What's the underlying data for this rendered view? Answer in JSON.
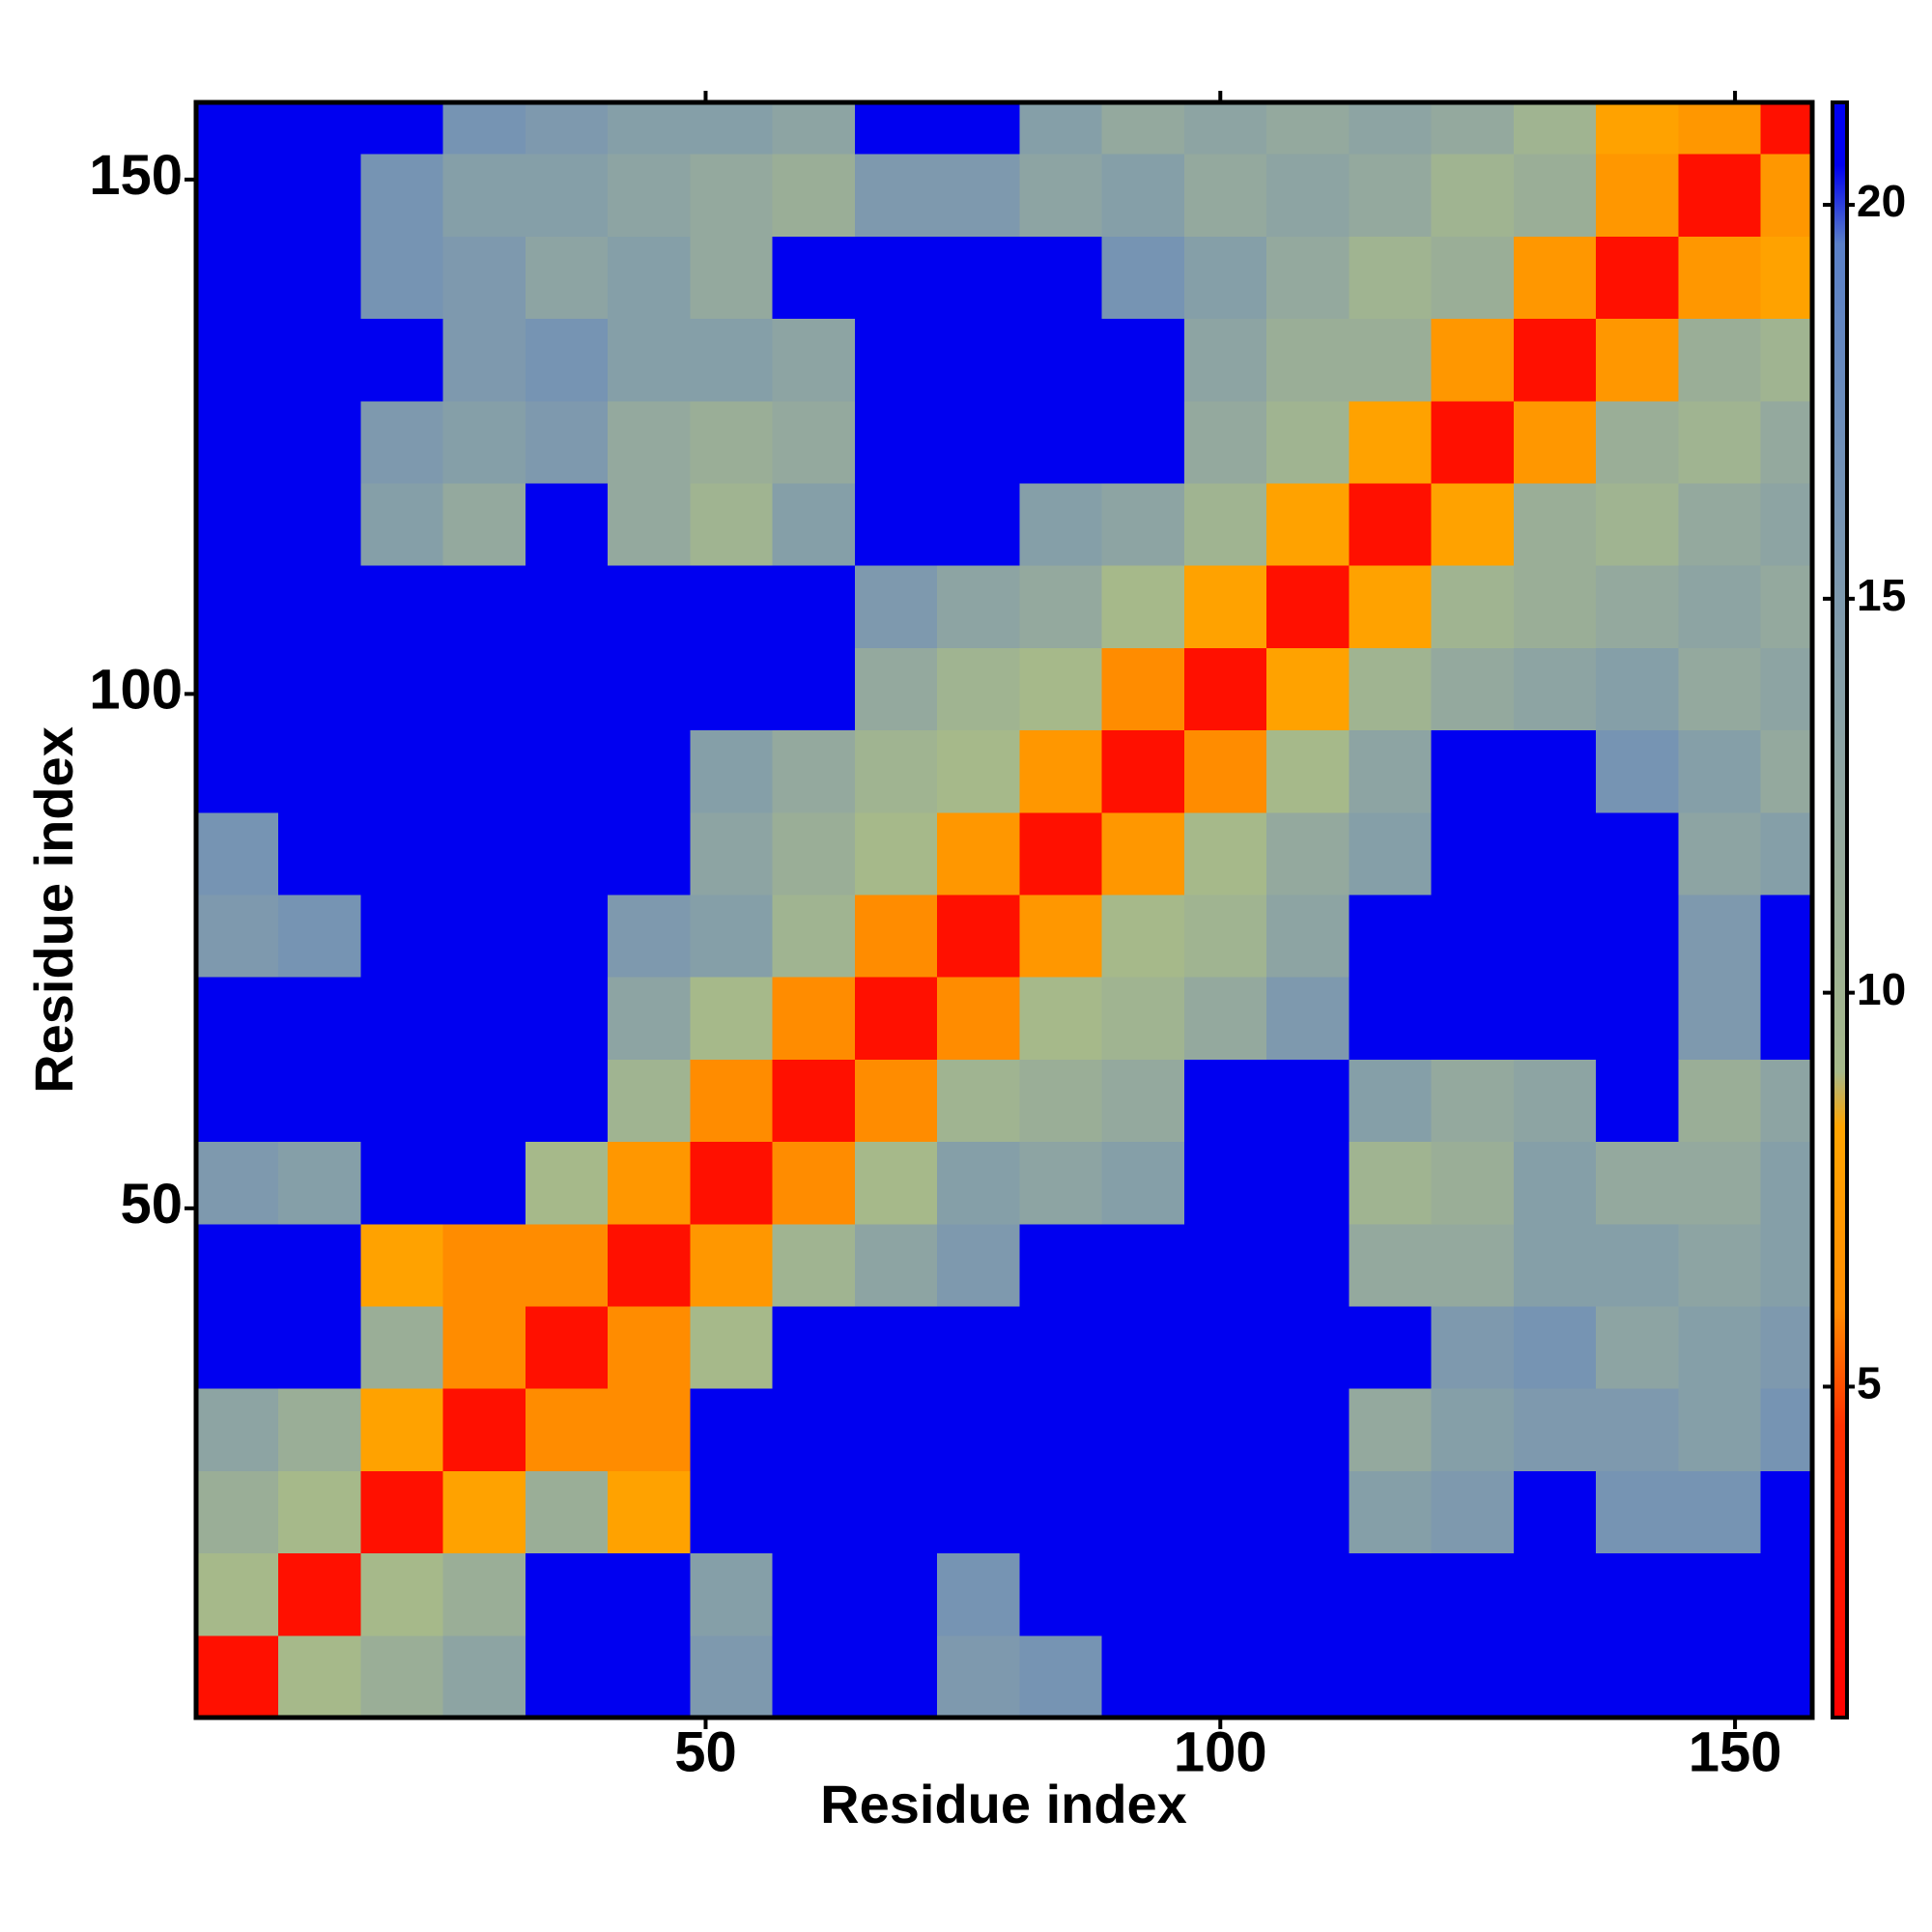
{
  "chart_data": {
    "type": "heatmap",
    "xlabel": "Residue index",
    "ylabel": "Residue index",
    "x": [
      4.5,
      12.5,
      20.5,
      28.5,
      36.5,
      44.5,
      52.5,
      60.5,
      68.5,
      76.5,
      84.5,
      92.5,
      100.5,
      108.5,
      116.5,
      124.5,
      132.5,
      140.5,
      148.5,
      156.5
    ],
    "y": [
      4.5,
      12.5,
      20.5,
      28.5,
      36.5,
      44.5,
      52.5,
      60.5,
      68.5,
      76.5,
      84.5,
      92.5,
      100.5,
      108.5,
      116.5,
      124.5,
      132.5,
      140.5,
      148.5,
      156.5
    ],
    "cell_size": 8,
    "values": [
      [
        2,
        9,
        11,
        13,
        21,
        21,
        15,
        21,
        21,
        15,
        16,
        21,
        21,
        21,
        21,
        21,
        21,
        21,
        21,
        21
      ],
      [
        9,
        2,
        9,
        11,
        21,
        21,
        14,
        21,
        21,
        16,
        21,
        21,
        21,
        21,
        21,
        21,
        21,
        21,
        21,
        21
      ],
      [
        11,
        9,
        2,
        8,
        11,
        8,
        21,
        21,
        21,
        21,
        21,
        21,
        21,
        21,
        14,
        15,
        21,
        16,
        16,
        21
      ],
      [
        13,
        11,
        8,
        2,
        6,
        6,
        21,
        21,
        21,
        21,
        21,
        21,
        21,
        21,
        12,
        14,
        15,
        15,
        14,
        16
      ],
      [
        21,
        21,
        11,
        6,
        2,
        6,
        9,
        21,
        21,
        21,
        21,
        21,
        21,
        21,
        21,
        15,
        16,
        13,
        14,
        15
      ],
      [
        21,
        21,
        8,
        6,
        6,
        2,
        7,
        10,
        13,
        15,
        21,
        21,
        21,
        21,
        12,
        12,
        14,
        14,
        13,
        14
      ],
      [
        15,
        14,
        21,
        21,
        9,
        7,
        2,
        6,
        9,
        14,
        13,
        14,
        21,
        21,
        10,
        11,
        14,
        12,
        12,
        14
      ],
      [
        21,
        21,
        21,
        21,
        21,
        10,
        6,
        2,
        6,
        10,
        11,
        12,
        21,
        21,
        14,
        12,
        13,
        21,
        11,
        13
      ],
      [
        21,
        21,
        21,
        21,
        21,
        13,
        9,
        6,
        2,
        6,
        9,
        10,
        12,
        15,
        21,
        21,
        21,
        21,
        15,
        21
      ],
      [
        15,
        16,
        21,
        21,
        21,
        15,
        14,
        10,
        6,
        2,
        7,
        9,
        10,
        13,
        21,
        21,
        21,
        21,
        15,
        21
      ],
      [
        16,
        21,
        21,
        21,
        21,
        21,
        13,
        11,
        9,
        7,
        2,
        7,
        9,
        12,
        14,
        21,
        21,
        21,
        13,
        14
      ],
      [
        21,
        21,
        21,
        21,
        21,
        21,
        14,
        12,
        10,
        9,
        7,
        2,
        6,
        9,
        13,
        21,
        21,
        16,
        14,
        12
      ],
      [
        21,
        21,
        21,
        21,
        21,
        21,
        21,
        21,
        12,
        10,
        9,
        6,
        2,
        8,
        10,
        12,
        13,
        14,
        12,
        13
      ],
      [
        21,
        21,
        21,
        21,
        21,
        21,
        21,
        21,
        15,
        13,
        12,
        9,
        8,
        2,
        8,
        10,
        11,
        12,
        13,
        12
      ],
      [
        21,
        21,
        14,
        12,
        21,
        12,
        10,
        14,
        21,
        21,
        14,
        13,
        10,
        8,
        2,
        8,
        11,
        10,
        12,
        13
      ],
      [
        21,
        21,
        15,
        14,
        15,
        12,
        11,
        12,
        21,
        21,
        21,
        21,
        12,
        10,
        8,
        2,
        7,
        11,
        10,
        12
      ],
      [
        21,
        21,
        21,
        15,
        16,
        14,
        14,
        13,
        21,
        21,
        21,
        21,
        13,
        11,
        11,
        7,
        2,
        7,
        11,
        10
      ],
      [
        21,
        21,
        16,
        15,
        13,
        14,
        12,
        21,
        21,
        21,
        21,
        16,
        14,
        12,
        10,
        11,
        7,
        2,
        7,
        8
      ],
      [
        21,
        21,
        16,
        14,
        14,
        13,
        12,
        11,
        15,
        15,
        13,
        14,
        12,
        13,
        12,
        10,
        11,
        7,
        2,
        7
      ],
      [
        21,
        21,
        21,
        16,
        15,
        14,
        14,
        13,
        21,
        21,
        14,
        12,
        13,
        12,
        13,
        12,
        10,
        8,
        7,
        2
      ]
    ],
    "xlim": [
      0.5,
      157.5
    ],
    "ylim": [
      0.5,
      157.5
    ],
    "xticks": [
      50,
      100,
      150
    ],
    "yticks": [
      50,
      100,
      150
    ],
    "colorbar": {
      "lim": [
        0.8,
        21.3
      ],
      "ticks": [
        5,
        10,
        15,
        20
      ]
    },
    "color_stops": [
      {
        "value": 0.8,
        "color": "#ff0000"
      },
      {
        "value": 4.5,
        "color": "#ff3000"
      },
      {
        "value": 6,
        "color": "#ff8c00"
      },
      {
        "value": 8.3,
        "color": "#ffa500"
      },
      {
        "value": 9,
        "color": "#a6b98a"
      },
      {
        "value": 12,
        "color": "#94a99e"
      },
      {
        "value": 17,
        "color": "#6f8fb8"
      },
      {
        "value": 19.5,
        "color": "#5a80c8"
      },
      {
        "value": 20.5,
        "color": "#0000f0"
      },
      {
        "value": 21.3,
        "color": "#0000f0"
      }
    ]
  }
}
